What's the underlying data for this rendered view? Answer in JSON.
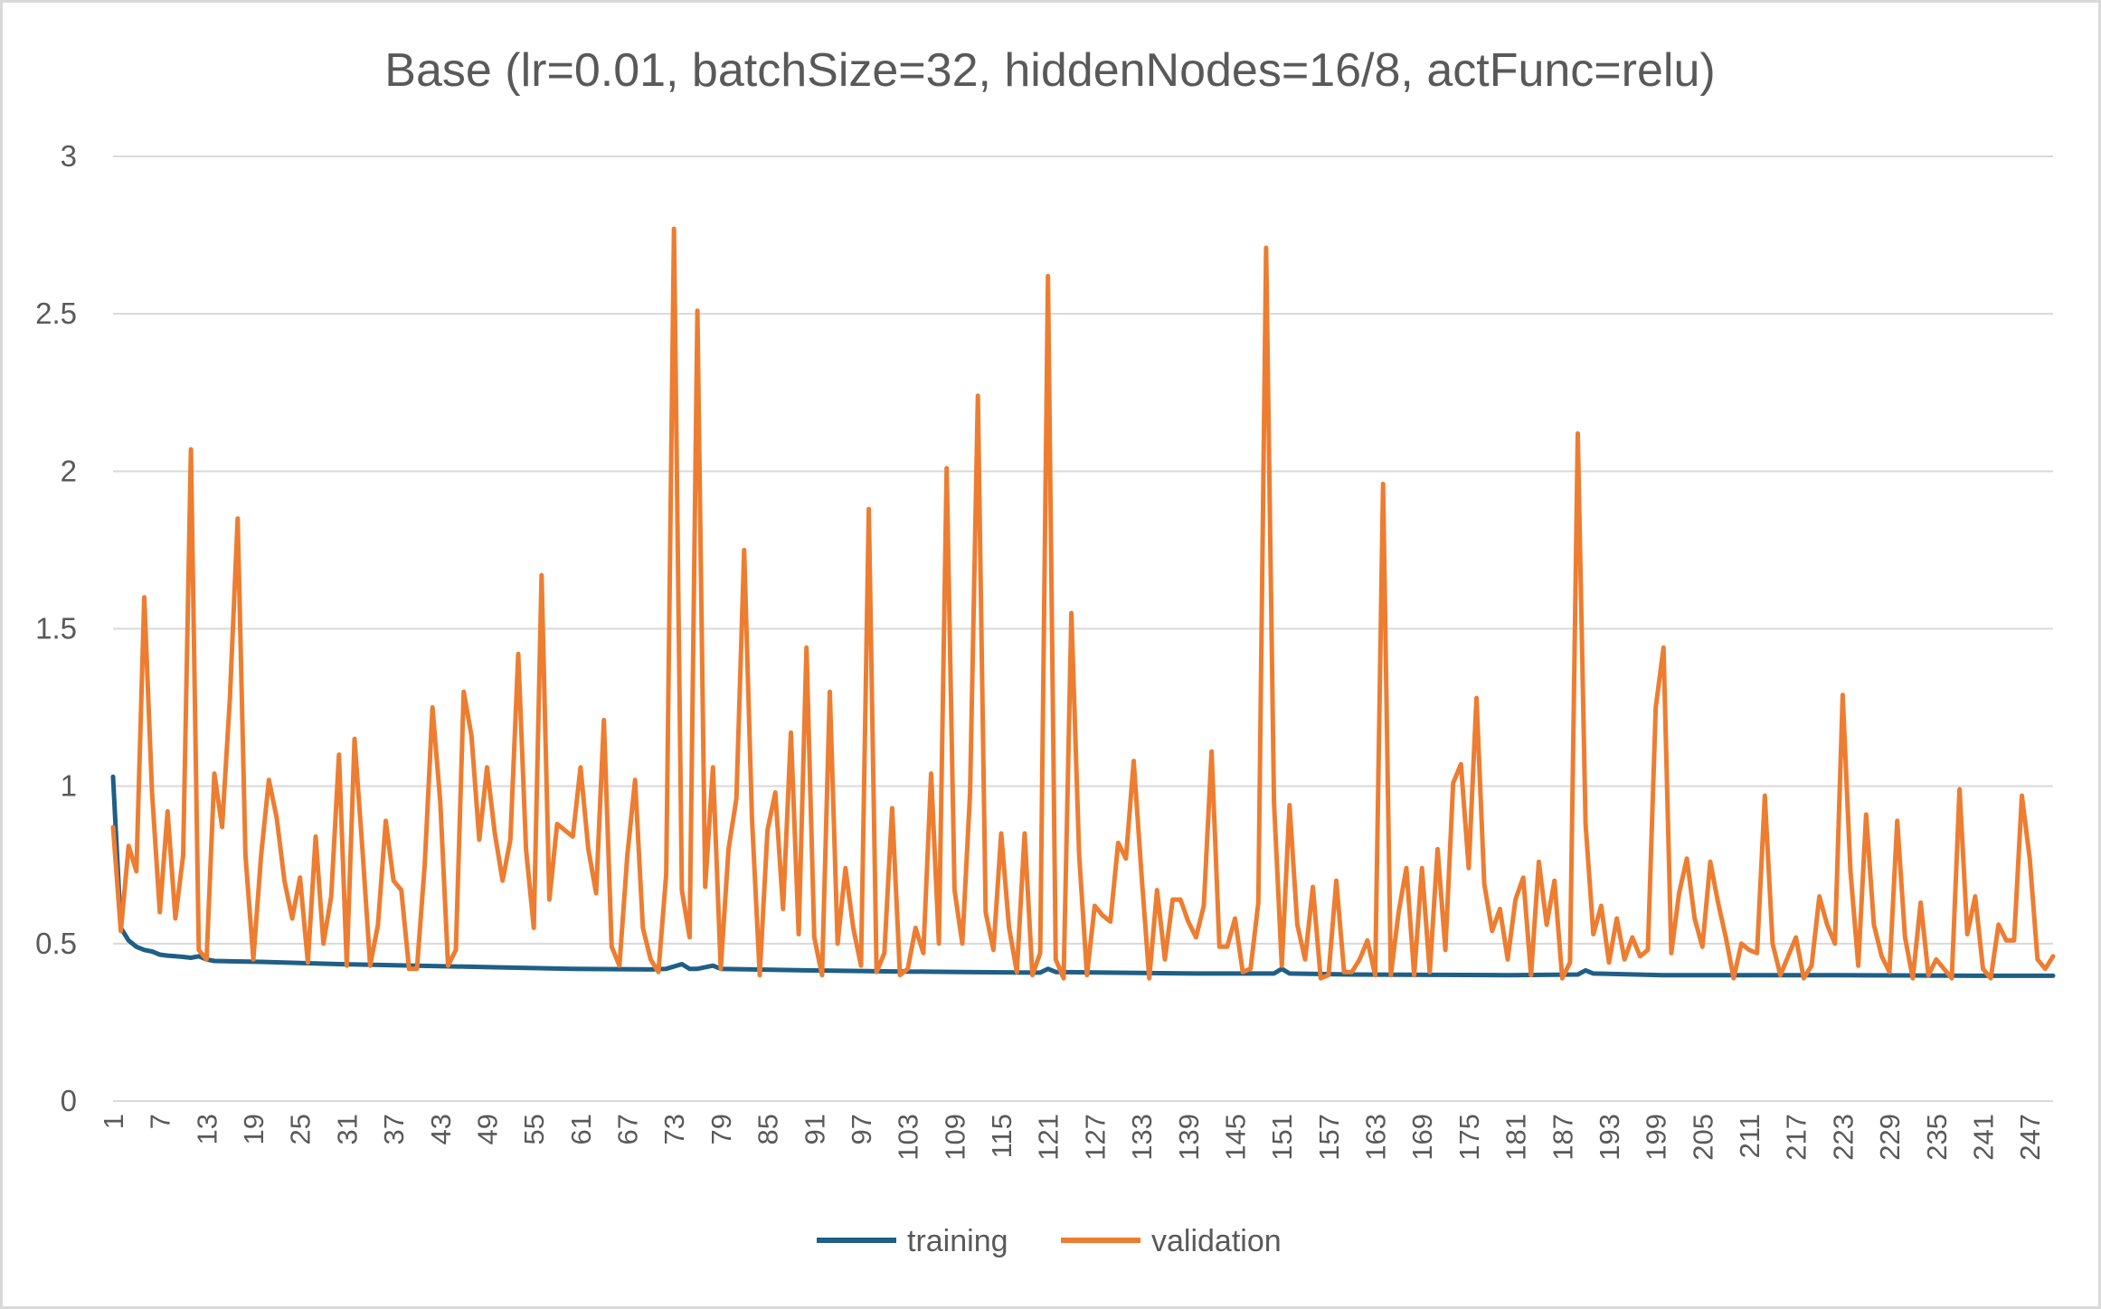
{
  "chart_data": {
    "type": "line",
    "title": "Base (lr=0.01, batchSize=32, hiddenNodes=16/8, actFunc=relu)",
    "xlabel": "",
    "ylabel": "",
    "ylim": [
      0,
      3
    ],
    "yticks": [
      "0",
      "0.5",
      "1",
      "1.5",
      "2",
      "2.5",
      "3"
    ],
    "x_start": 1,
    "x_end": 250,
    "xticks": [
      "1",
      "7",
      "13",
      "19",
      "25",
      "31",
      "37",
      "43",
      "49",
      "55",
      "61",
      "67",
      "73",
      "79",
      "85",
      "91",
      "97",
      "103",
      "109",
      "115",
      "121",
      "127",
      "133",
      "139",
      "145",
      "151",
      "157",
      "163",
      "169",
      "175",
      "181",
      "187",
      "193",
      "199",
      "205",
      "211",
      "217",
      "223",
      "229",
      "235",
      "241",
      "247"
    ],
    "grid": "horizontal",
    "legend_position": "bottom",
    "series": [
      {
        "name": "training",
        "color": "#1f5f86",
        "points": [
          [
            1,
            1.03
          ],
          [
            2,
            0.55
          ],
          [
            3,
            0.51
          ],
          [
            4,
            0.49
          ],
          [
            5,
            0.48
          ],
          [
            6,
            0.475
          ],
          [
            7,
            0.465
          ],
          [
            8,
            0.462
          ],
          [
            9,
            0.46
          ],
          [
            10,
            0.458
          ],
          [
            11,
            0.455
          ],
          [
            12,
            0.46
          ],
          [
            13,
            0.45
          ],
          [
            14,
            0.445
          ],
          [
            20,
            0.442
          ],
          [
            30,
            0.435
          ],
          [
            40,
            0.43
          ],
          [
            50,
            0.425
          ],
          [
            60,
            0.42
          ],
          [
            70,
            0.418
          ],
          [
            72,
            0.42
          ],
          [
            74,
            0.435
          ],
          [
            75,
            0.42
          ],
          [
            76,
            0.42
          ],
          [
            78,
            0.43
          ],
          [
            79,
            0.42
          ],
          [
            90,
            0.415
          ],
          [
            100,
            0.412
          ],
          [
            110,
            0.41
          ],
          [
            120,
            0.408
          ],
          [
            121,
            0.42
          ],
          [
            122,
            0.41
          ],
          [
            140,
            0.405
          ],
          [
            150,
            0.405
          ],
          [
            151,
            0.42
          ],
          [
            152,
            0.405
          ],
          [
            160,
            0.402
          ],
          [
            180,
            0.4
          ],
          [
            189,
            0.402
          ],
          [
            190,
            0.415
          ],
          [
            191,
            0.405
          ],
          [
            200,
            0.4
          ],
          [
            220,
            0.4
          ],
          [
            240,
            0.398
          ],
          [
            250,
            0.398
          ]
        ]
      },
      {
        "name": "validation",
        "color": "#ed7d31",
        "values": [
          0.87,
          0.54,
          0.81,
          0.73,
          1.6,
          0.98,
          0.6,
          0.92,
          0.58,
          0.78,
          2.07,
          0.48,
          0.45,
          1.04,
          0.87,
          1.28,
          1.85,
          0.78,
          0.45,
          0.78,
          1.02,
          0.9,
          0.7,
          0.58,
          0.71,
          0.44,
          0.84,
          0.5,
          0.65,
          1.1,
          0.43,
          1.15,
          0.8,
          0.43,
          0.56,
          0.89,
          0.7,
          0.67,
          0.42,
          0.42,
          0.75,
          1.25,
          0.95,
          0.43,
          0.48,
          1.3,
          1.16,
          0.83,
          1.06,
          0.85,
          0.7,
          0.83,
          1.42,
          0.8,
          0.55,
          1.67,
          0.64,
          0.88,
          0.86,
          0.84,
          1.06,
          0.8,
          0.66,
          1.21,
          0.49,
          0.43,
          0.78,
          1.02,
          0.55,
          0.45,
          0.41,
          0.72,
          2.77,
          0.67,
          0.52,
          2.51,
          0.68,
          1.06,
          0.42,
          0.8,
          0.96,
          1.75,
          0.9,
          0.4,
          0.86,
          0.98,
          0.61,
          1.17,
          0.53,
          1.44,
          0.52,
          0.4,
          1.3,
          0.5,
          0.74,
          0.55,
          0.43,
          1.88,
          0.41,
          0.47,
          0.93,
          0.4,
          0.42,
          0.55,
          0.47,
          1.04,
          0.5,
          2.01,
          0.67,
          0.5,
          0.98,
          2.24,
          0.6,
          0.48,
          0.85,
          0.55,
          0.41,
          0.85,
          0.4,
          0.47,
          2.62,
          0.45,
          0.39,
          1.55,
          0.78,
          0.4,
          0.62,
          0.59,
          0.57,
          0.82,
          0.77,
          1.08,
          0.72,
          0.39,
          0.67,
          0.45,
          0.64,
          0.64,
          0.57,
          0.52,
          0.62,
          1.11,
          0.49,
          0.49,
          0.58,
          0.41,
          0.42,
          0.63,
          2.71,
          0.95,
          0.43,
          0.94,
          0.56,
          0.45,
          0.68,
          0.39,
          0.4,
          0.7,
          0.41,
          0.41,
          0.45,
          0.51,
          0.4,
          1.96,
          0.4,
          0.6,
          0.74,
          0.4,
          0.74,
          0.41,
          0.8,
          0.48,
          1.01,
          1.07,
          0.74,
          1.28,
          0.69,
          0.54,
          0.61,
          0.45,
          0.64,
          0.71,
          0.4,
          0.76,
          0.56,
          0.7,
          0.39,
          0.44,
          2.12,
          0.88,
          0.53,
          0.62,
          0.44,
          0.58,
          0.45,
          0.52,
          0.46,
          0.48,
          1.25,
          1.44,
          0.47,
          0.66,
          0.77,
          0.58,
          0.49,
          0.76,
          0.63,
          0.52,
          0.39,
          0.5,
          0.48,
          0.47,
          0.97,
          0.5,
          0.4,
          0.46,
          0.52,
          0.39,
          0.43,
          0.65,
          0.56,
          0.5,
          1.29,
          0.73,
          0.43,
          0.91,
          0.56,
          0.46,
          0.41,
          0.89,
          0.52,
          0.39,
          0.63,
          0.4,
          0.45,
          0.42,
          0.39,
          0.99,
          0.53,
          0.65,
          0.42,
          0.39,
          0.56,
          0.51,
          0.51,
          0.97,
          0.77,
          0.45,
          0.42,
          0.46
        ]
      }
    ]
  }
}
